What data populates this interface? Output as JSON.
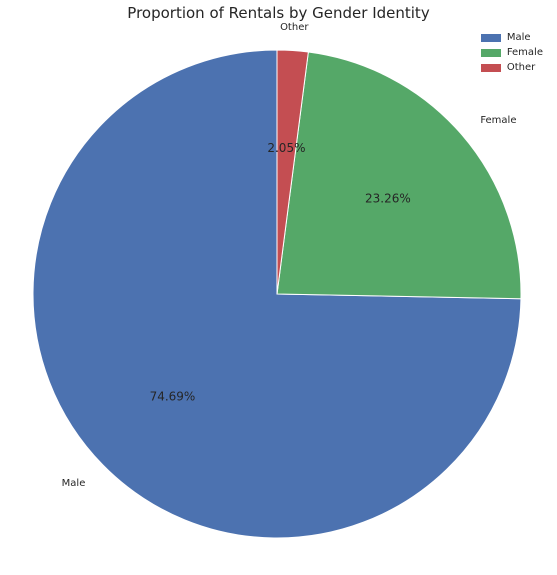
{
  "chart_data": {
    "type": "pie",
    "title": "Proportion of Rentals by Gender Identity",
    "categories": [
      "Male",
      "Female",
      "Other"
    ],
    "values": [
      74.69,
      23.26,
      2.05
    ],
    "percent_labels": [
      "74.69%",
      "23.26%",
      "2.05%"
    ],
    "colors": [
      "#4c72b0",
      "#55a868",
      "#c44e52"
    ],
    "legend": {
      "placement": "top-right",
      "entries": [
        "Male",
        "Female",
        "Other"
      ]
    }
  }
}
